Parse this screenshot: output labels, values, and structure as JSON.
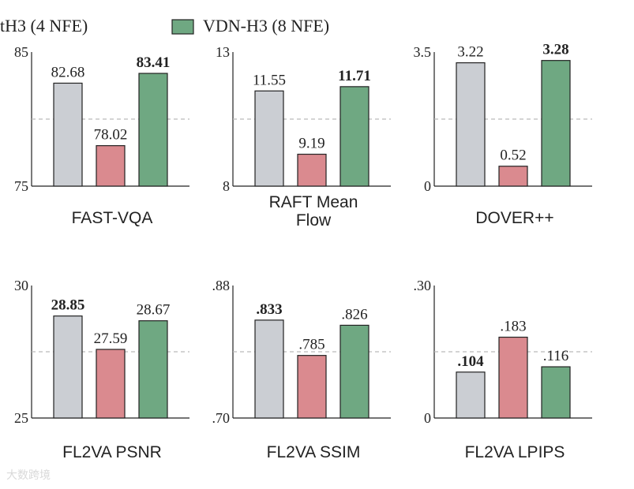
{
  "legend": [
    {
      "text": "tH3 (4 NFE)"
    },
    {
      "text": "VDN-H3 (8 NFE)",
      "color": "#6fa882"
    }
  ],
  "colors": {
    "gray": "#cbced3",
    "red": "#da8a8f",
    "green": "#6fa882",
    "stroke": "#222222",
    "ref_line": "#bbbbbb"
  },
  "watermark": "大数跨境",
  "chart_data": [
    {
      "type": "bar",
      "title": "FAST-VQA",
      "ylim": [
        75,
        85
      ],
      "tick_labels": {
        "top": "85",
        "bottom": "75"
      },
      "ref_line": 80,
      "values": [
        82.68,
        78.02,
        83.41
      ],
      "labels": [
        "82.68",
        "78.02",
        "83.41"
      ],
      "bold": [
        false,
        false,
        true
      ]
    },
    {
      "type": "bar",
      "title": "RAFT Mean Flow",
      "title_lines": [
        "RAFT Mean",
        "Flow"
      ],
      "ylim": [
        8,
        13
      ],
      "tick_labels": {
        "top": "13",
        "bottom": "8"
      },
      "ref_line": 10.5,
      "values": [
        11.55,
        9.19,
        11.71
      ],
      "labels": [
        "11.55",
        "9.19",
        "11.71"
      ],
      "bold": [
        false,
        false,
        true
      ]
    },
    {
      "type": "bar",
      "title": "DOVER++",
      "ylim": [
        0,
        3.5
      ],
      "tick_labels": {
        "top": "3.5",
        "bottom": "0"
      },
      "ref_line": 1.75,
      "values": [
        3.22,
        0.52,
        3.28
      ],
      "labels": [
        "3.22",
        "0.52",
        "3.28"
      ],
      "bold": [
        false,
        false,
        true
      ]
    },
    {
      "type": "bar",
      "title": "FL2VA PSNR",
      "ylim": [
        25,
        30
      ],
      "tick_labels": {
        "top": "30",
        "bottom": "25"
      },
      "ref_line": 27.5,
      "values": [
        28.85,
        27.59,
        28.67
      ],
      "labels": [
        "28.85",
        "27.59",
        "28.67"
      ],
      "bold": [
        true,
        false,
        false
      ]
    },
    {
      "type": "bar",
      "title": "FL2VA SSIM",
      "ylim": [
        0.7,
        0.88
      ],
      "tick_labels": {
        "top": ".88",
        "bottom": ".70"
      },
      "ref_line": 0.79,
      "values": [
        0.833,
        0.785,
        0.826
      ],
      "labels": [
        ".833",
        ".785",
        ".826"
      ],
      "bold": [
        true,
        false,
        false
      ]
    },
    {
      "type": "bar",
      "title": "FL2VA LPIPS",
      "ylim": [
        0,
        0.3
      ],
      "tick_labels": {
        "top": ".30",
        "bottom": "0"
      },
      "ref_line": 0.15,
      "values": [
        0.104,
        0.183,
        0.116
      ],
      "labels": [
        ".104",
        ".183",
        ".116"
      ],
      "bold": [
        true,
        false,
        false
      ]
    }
  ]
}
